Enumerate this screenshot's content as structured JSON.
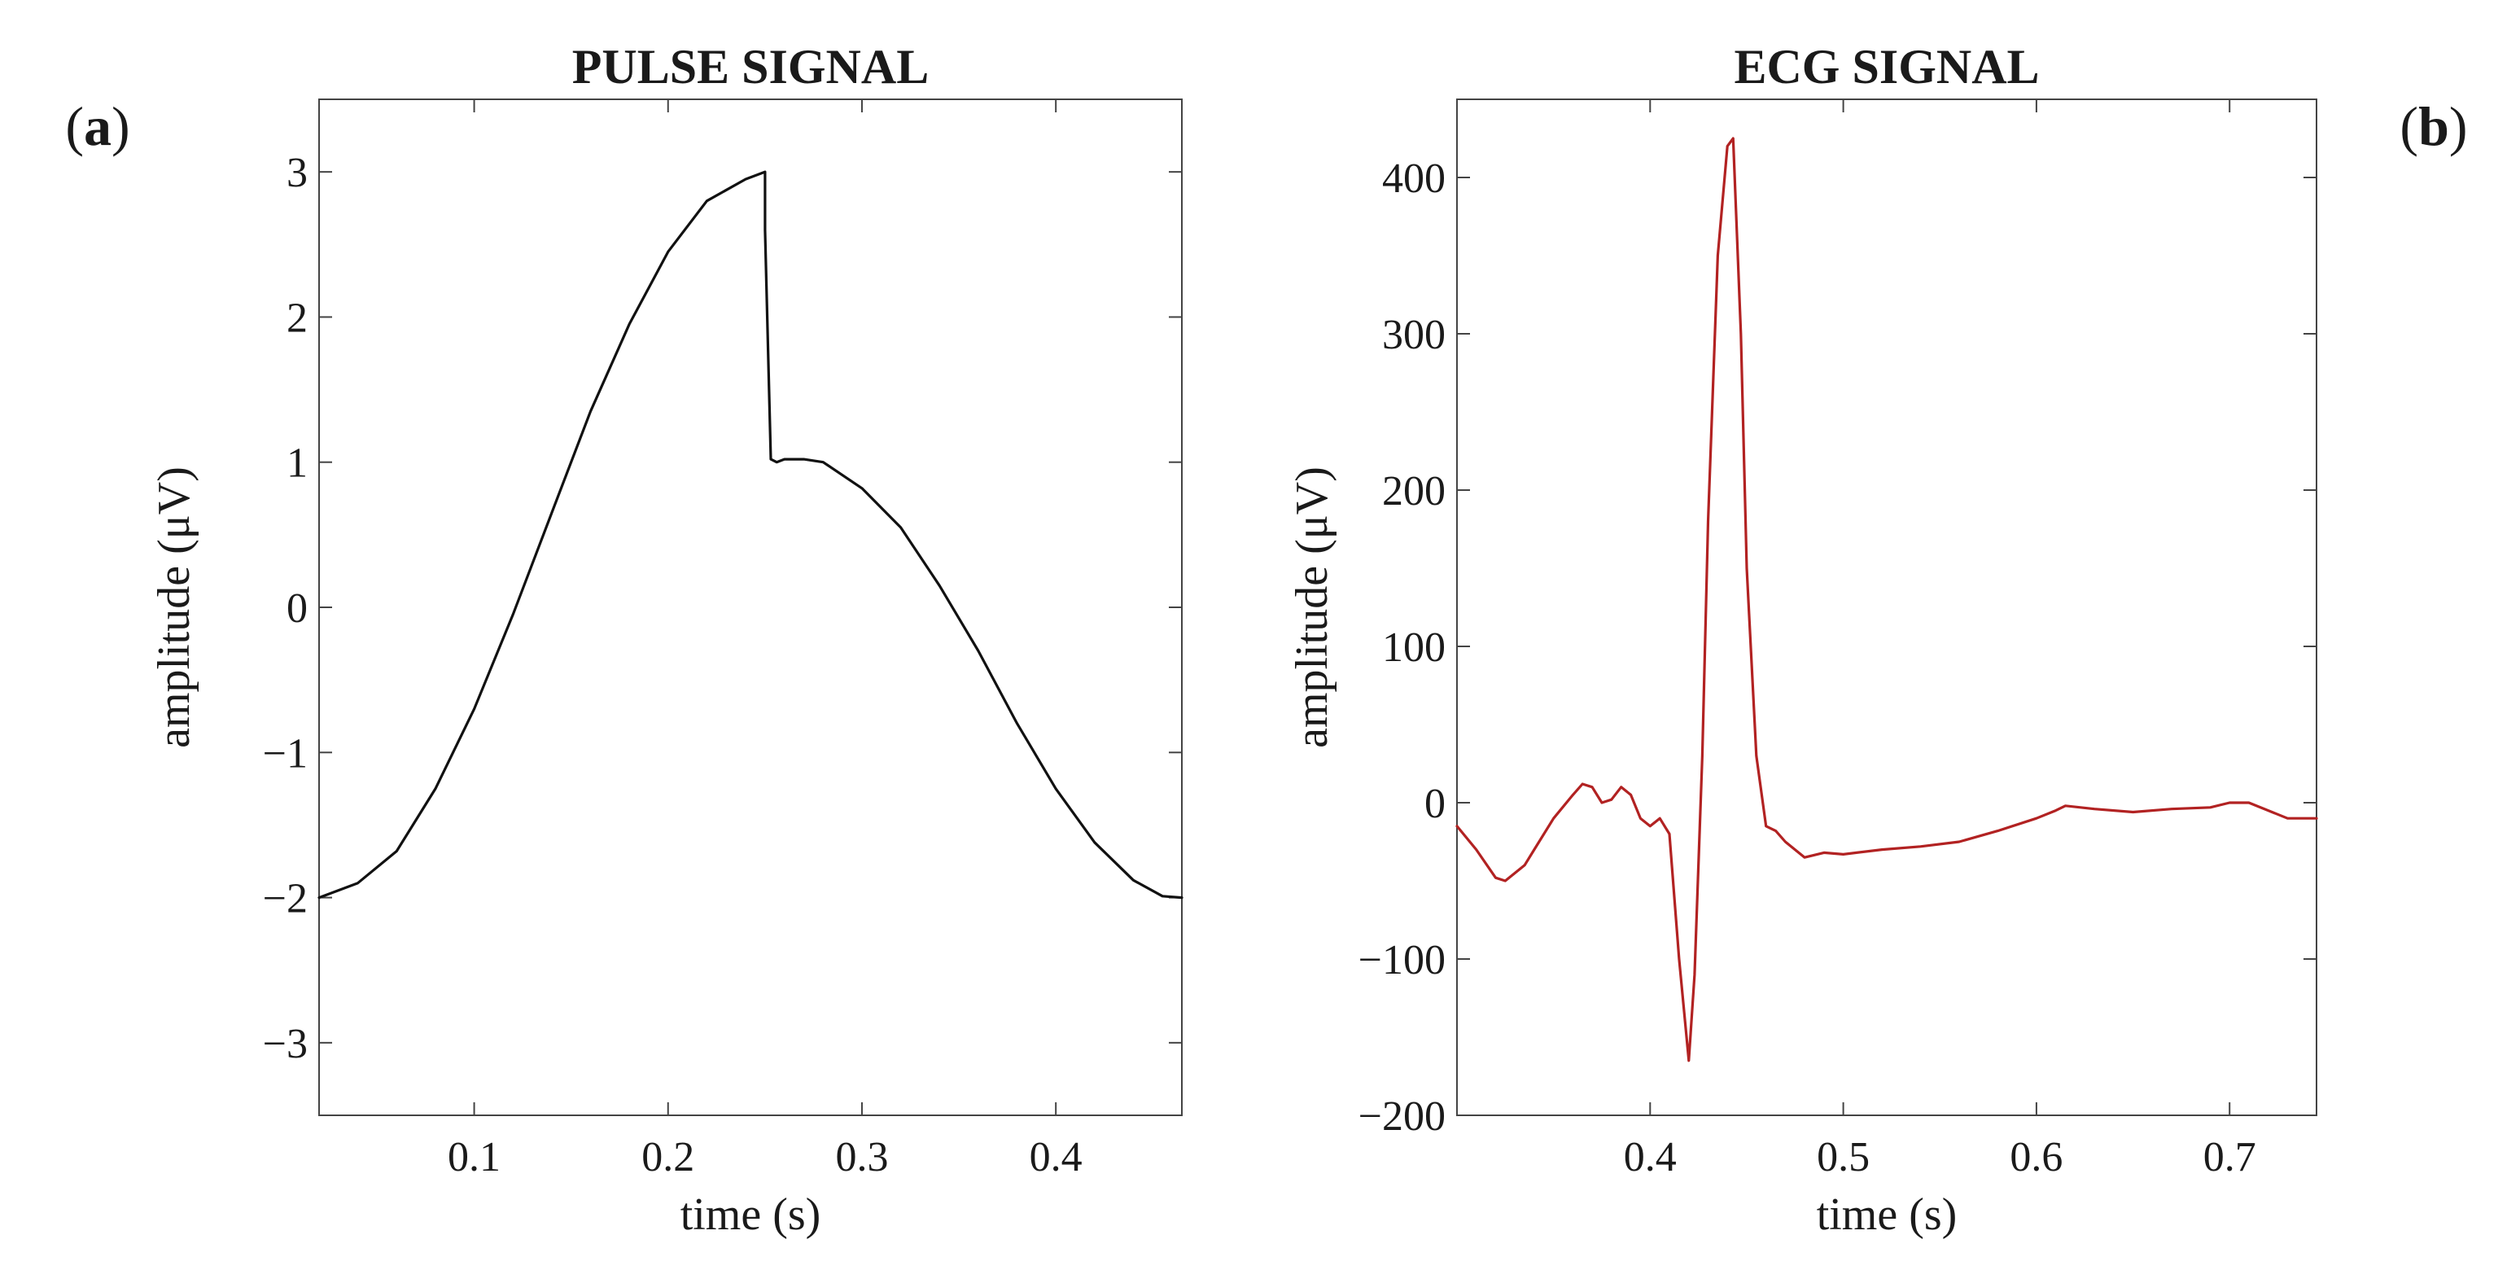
{
  "chart_data": [
    {
      "type": "line",
      "panel_label": "a",
      "title": "PULSE SIGNAL",
      "xlabel": "time (s)",
      "ylabel": "amplitude (μV)",
      "xlim": [
        0.02,
        0.465
      ],
      "ylim": [
        -3.5,
        3.5
      ],
      "xticks": [
        0.1,
        0.2,
        0.3,
        0.4
      ],
      "xtick_labels": [
        "0.1",
        "0.2",
        "0.3",
        "0.4"
      ],
      "yticks": [
        -3,
        -2,
        -1,
        0,
        1,
        2,
        3
      ],
      "ytick_labels": [
        "−3",
        "−2",
        "−1",
        "0",
        "1",
        "2",
        "3"
      ],
      "grid": false,
      "color": "#111111",
      "series": [
        {
          "x": [
            0.02,
            0.04,
            0.06,
            0.08,
            0.1,
            0.12,
            0.14,
            0.16,
            0.18,
            0.2,
            0.22,
            0.24,
            0.25,
            0.25,
            0.253,
            0.256,
            0.26,
            0.27,
            0.28,
            0.3,
            0.32,
            0.34,
            0.36,
            0.38,
            0.4,
            0.42,
            0.44,
            0.455,
            0.465
          ],
          "y": [
            -2.0,
            -1.9,
            -1.68,
            -1.25,
            -0.7,
            -0.05,
            0.65,
            1.35,
            1.95,
            2.45,
            2.8,
            2.95,
            3.0,
            2.6,
            1.02,
            1.0,
            1.02,
            1.02,
            1.0,
            0.82,
            0.55,
            0.15,
            -0.3,
            -0.8,
            -1.25,
            -1.62,
            -1.88,
            -1.99,
            -2.0
          ]
        }
      ]
    },
    {
      "type": "line",
      "panel_label": "b",
      "title": "ECG SIGNAL",
      "xlabel": "time (s)",
      "ylabel": "amplitude (μV)",
      "xlim": [
        0.3,
        0.745
      ],
      "ylim": [
        -200,
        450
      ],
      "xticks": [
        0.4,
        0.5,
        0.6,
        0.7
      ],
      "xtick_labels": [
        "0.4",
        "0.5",
        "0.6",
        "0.7"
      ],
      "yticks": [
        -200,
        -100,
        0,
        100,
        200,
        300,
        400
      ],
      "ytick_labels": [
        "−200",
        "−100",
        "0",
        "100",
        "200",
        "300",
        "400"
      ],
      "grid": false,
      "color": "#b22222",
      "series": [
        {
          "x": [
            0.3,
            0.31,
            0.32,
            0.325,
            0.335,
            0.34,
            0.35,
            0.36,
            0.365,
            0.37,
            0.375,
            0.38,
            0.385,
            0.39,
            0.395,
            0.4,
            0.405,
            0.41,
            0.415,
            0.42,
            0.423,
            0.427,
            0.43,
            0.435,
            0.44,
            0.443,
            0.447,
            0.45,
            0.455,
            0.46,
            0.465,
            0.47,
            0.48,
            0.49,
            0.5,
            0.52,
            0.54,
            0.56,
            0.58,
            0.6,
            0.61,
            0.615,
            0.63,
            0.65,
            0.67,
            0.69,
            0.7,
            0.71,
            0.72,
            0.73,
            0.745
          ],
          "y": [
            -15,
            -30,
            -48,
            -50,
            -40,
            -30,
            -10,
            5,
            12,
            10,
            0,
            2,
            10,
            5,
            -10,
            -15,
            -10,
            -20,
            -100,
            -165,
            -110,
            30,
            180,
            350,
            420,
            425,
            300,
            150,
            30,
            -15,
            -18,
            -25,
            -35,
            -32,
            -33,
            -30,
            -28,
            -25,
            -18,
            -10,
            -5,
            -2,
            -4,
            -6,
            -4,
            -3,
            0,
            0,
            -5,
            -10,
            -10
          ]
        }
      ]
    }
  ]
}
